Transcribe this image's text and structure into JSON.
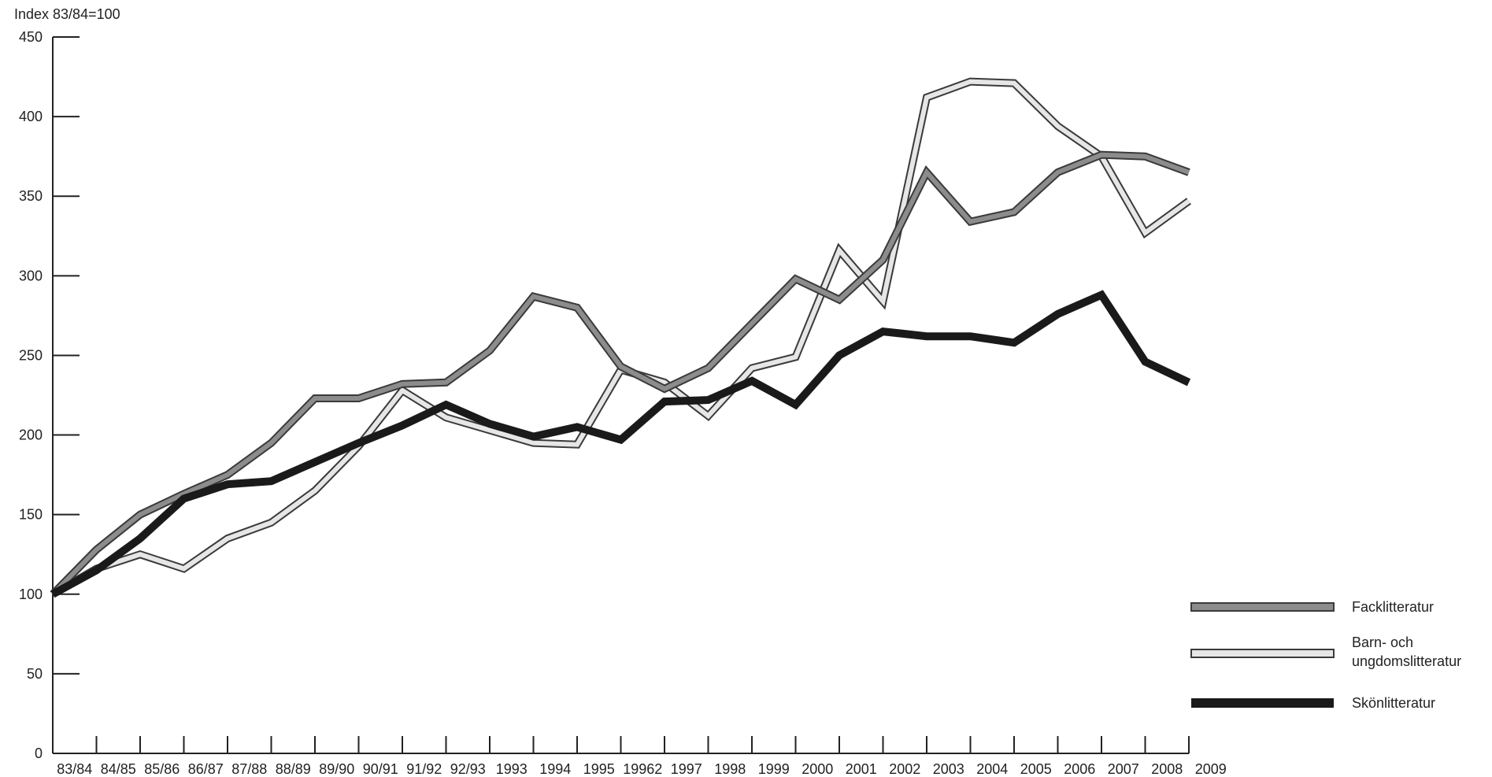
{
  "chart_data": {
    "type": "line",
    "unit_label": "Index 83/84=100",
    "ylim": [
      0,
      450
    ],
    "y_ticks": [
      0,
      50,
      100,
      150,
      200,
      250,
      300,
      350,
      400,
      450
    ],
    "grid": false,
    "legend_position": "right",
    "categories": [
      "83/84",
      "84/85",
      "85/86",
      "86/87",
      "87/88",
      "88/89",
      "89/90",
      "90/91",
      "91/92",
      "92/93",
      "1993",
      "1994",
      "1995",
      "19962",
      "1997",
      "1998",
      "1999",
      "2000",
      "2001",
      "2002",
      "2003",
      "2004",
      "2005",
      "2006",
      "2007",
      "2008",
      "2009"
    ],
    "series": [
      {
        "name": "Facklitteratur",
        "style": "gray",
        "color": "#8c8c8c",
        "outline": "#3a3a3a",
        "values": [
          100,
          128,
          150,
          163,
          175,
          195,
          223,
          223,
          232,
          233,
          253,
          287,
          280,
          243,
          229,
          242,
          270,
          298,
          285,
          310,
          365,
          334,
          340,
          365,
          376,
          375,
          365
        ]
      },
      {
        "name": "Barn- och ungdomslitteratur",
        "style": "light",
        "color": "#e6e6e6",
        "outline": "#3a3a3a",
        "values": [
          100,
          116,
          125,
          116,
          135,
          145,
          165,
          193,
          228,
          211,
          203,
          195,
          194,
          241,
          233,
          212,
          242,
          249,
          316,
          284,
          412,
          422,
          421,
          394,
          375,
          327,
          347
        ]
      },
      {
        "name": "Skönlitteratur",
        "style": "black",
        "color": "#1a1a1a",
        "outline": "#1a1a1a",
        "values": [
          100,
          115,
          135,
          160,
          169,
          171,
          183,
          195,
          206,
          219,
          207,
          199,
          205,
          197,
          221,
          222,
          234,
          219,
          250,
          265,
          262,
          262,
          258,
          276,
          288,
          246,
          233
        ]
      }
    ]
  }
}
